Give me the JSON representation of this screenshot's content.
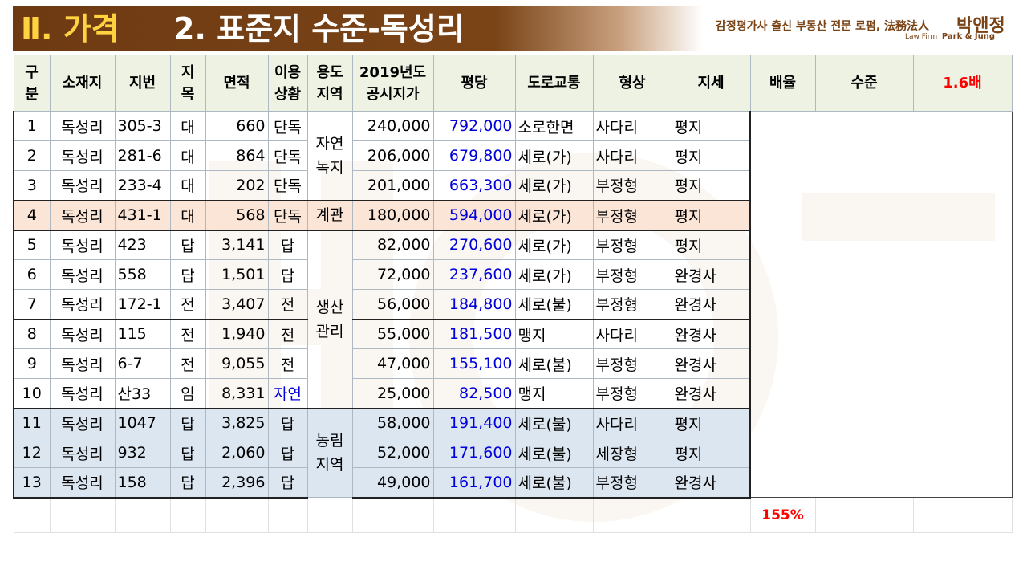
{
  "header": {
    "section": "Ⅱ. 가격",
    "title": "2. 표준지 수준-독성리"
  },
  "brand": {
    "line1": "감정평가사 출신 부동산 전문 로펌, 法務法人",
    "name": "박앤정",
    "line2_prefix": "Law Firm",
    "line2_name": "Park & Jung"
  },
  "table": {
    "headers": {
      "gubun": "구\n분",
      "location": "소재지",
      "lot": "지번",
      "category": "지\n목",
      "area": "면적",
      "usage": "이용\n상황",
      "zone": "용도\n지역",
      "price2019": "2019년도\n공시지가",
      "per_pyeong": "평당",
      "road": "도로교통",
      "shape": "형상",
      "terrain": "지세",
      "multiple": "배율",
      "level": "수준",
      "level_value": "1.6배"
    },
    "zones": {
      "z1": "자연\n녹지",
      "z2": "계관",
      "z3": "생산\n관리",
      "z4": "농림\n지역"
    },
    "rows": [
      {
        "no": "1",
        "loc": "독성리",
        "lot": "305-3",
        "cat": "대",
        "area": "660",
        "use": "단독",
        "price": "240,000",
        "pp": "792,000",
        "road": "소로한면",
        "shape": "사다리",
        "terrain": "평지"
      },
      {
        "no": "2",
        "loc": "독성리",
        "lot": "281-6",
        "cat": "대",
        "area": "864",
        "use": "단독",
        "price": "206,000",
        "pp": "679,800",
        "road": "세로(가)",
        "shape": "사다리",
        "terrain": "평지"
      },
      {
        "no": "3",
        "loc": "독성리",
        "lot": "233-4",
        "cat": "대",
        "area": "202",
        "use": "단독",
        "price": "201,000",
        "pp": "663,300",
        "road": "세로(가)",
        "shape": "부정형",
        "terrain": "평지"
      },
      {
        "no": "4",
        "loc": "독성리",
        "lot": "431-1",
        "cat": "대",
        "area": "568",
        "use": "단독",
        "price": "180,000",
        "pp": "594,000",
        "road": "세로(가)",
        "shape": "부정형",
        "terrain": "평지"
      },
      {
        "no": "5",
        "loc": "독성리",
        "lot": "423",
        "cat": "답",
        "area": "3,141",
        "use": "답",
        "price": "82,000",
        "pp": "270,600",
        "road": "세로(가)",
        "shape": "부정형",
        "terrain": "평지"
      },
      {
        "no": "6",
        "loc": "독성리",
        "lot": "558",
        "cat": "답",
        "area": "1,501",
        "use": "답",
        "price": "72,000",
        "pp": "237,600",
        "road": "세로(가)",
        "shape": "부정형",
        "terrain": "완경사"
      },
      {
        "no": "7",
        "loc": "독성리",
        "lot": "172-1",
        "cat": "전",
        "area": "3,407",
        "use": "전",
        "price": "56,000",
        "pp": "184,800",
        "road": "세로(불)",
        "shape": "부정형",
        "terrain": "완경사"
      },
      {
        "no": "8",
        "loc": "독성리",
        "lot": "115",
        "cat": "전",
        "area": "1,940",
        "use": "전",
        "price": "55,000",
        "pp": "181,500",
        "road": "맹지",
        "shape": "사다리",
        "terrain": "완경사"
      },
      {
        "no": "9",
        "loc": "독성리",
        "lot": "6-7",
        "cat": "전",
        "area": "9,055",
        "use": "전",
        "price": "47,000",
        "pp": "155,100",
        "road": "세로(불)",
        "shape": "부정형",
        "terrain": "완경사"
      },
      {
        "no": "10",
        "loc": "독성리",
        "lot": "산33",
        "cat": "임",
        "area": "8,331",
        "use": "자연",
        "price": "25,000",
        "pp": "82,500",
        "road": "맹지",
        "shape": "부정형",
        "terrain": "완경사"
      },
      {
        "no": "11",
        "loc": "독성리",
        "lot": "1047",
        "cat": "답",
        "area": "3,825",
        "use": "답",
        "price": "58,000",
        "pp": "191,400",
        "road": "세로(불)",
        "shape": "사다리",
        "terrain": "평지"
      },
      {
        "no": "12",
        "loc": "독성리",
        "lot": "932",
        "cat": "답",
        "area": "2,060",
        "use": "답",
        "price": "52,000",
        "pp": "171,600",
        "road": "세로(불)",
        "shape": "세장형",
        "terrain": "평지"
      },
      {
        "no": "13",
        "loc": "독성리",
        "lot": "158",
        "cat": "답",
        "area": "2,396",
        "use": "답",
        "price": "49,000",
        "pp": "161,700",
        "road": "세로(불)",
        "shape": "부정형",
        "terrain": "완경사"
      }
    ],
    "footer_percent": "155%"
  },
  "colors": {
    "header_brown": "#7a4417",
    "header_yellow": "#ffd23f",
    "per_pyeong_blue": "#0000dd",
    "highlight_row": "#fbe5d6",
    "agri_rows": "#dce6f1",
    "accent_red": "#ff0000"
  }
}
